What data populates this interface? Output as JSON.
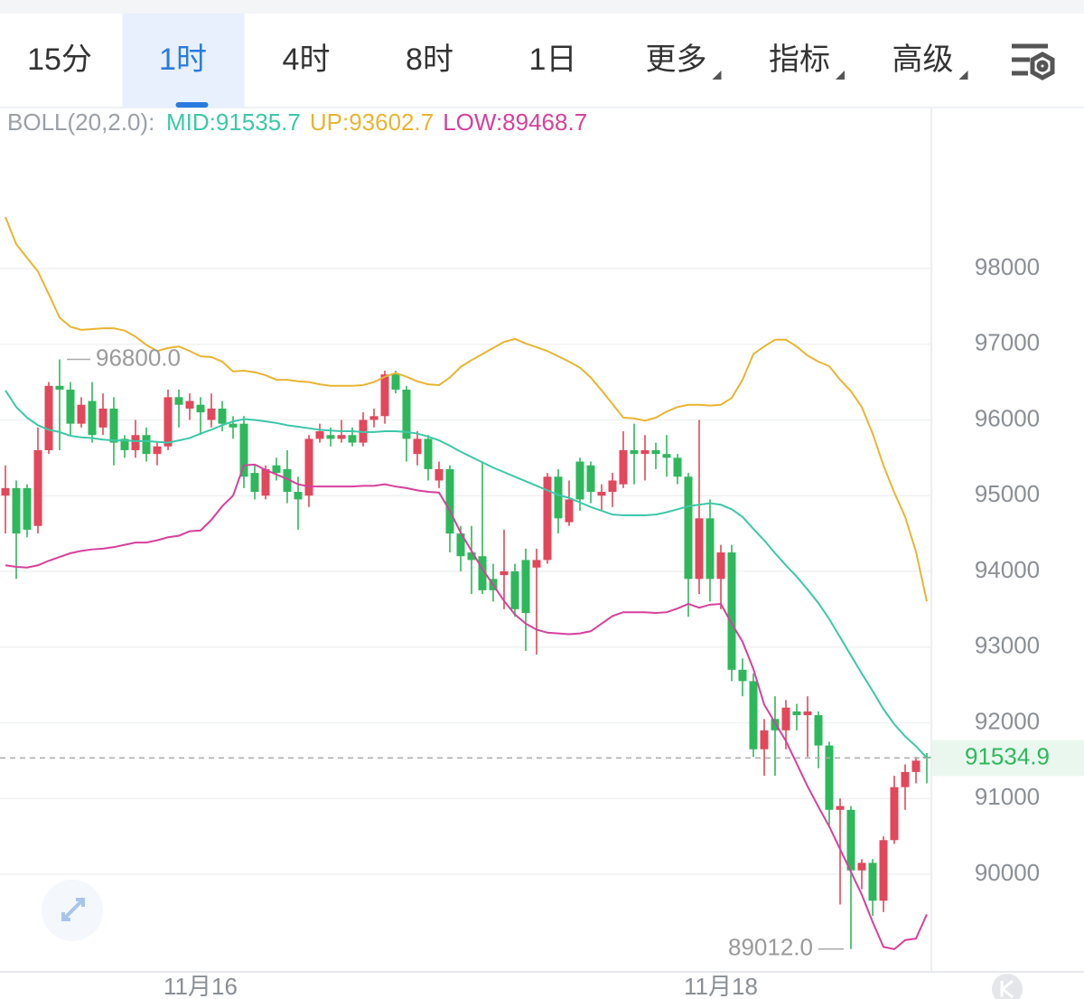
{
  "tabs": [
    {
      "label": "15分"
    },
    {
      "label": "1时",
      "active": true
    },
    {
      "label": "4时"
    },
    {
      "label": "8时"
    },
    {
      "label": "1日"
    },
    {
      "label": "更多",
      "dropdown": true
    },
    {
      "label": "指标",
      "dropdown": true
    },
    {
      "label": "高级",
      "dropdown": true
    }
  ],
  "chart_data": {
    "type": "candlestick",
    "indicator": "BOLL(20,2.0):",
    "up_color": "#e2475b",
    "down_color": "#2eb85c",
    "ylim": [
      88710,
      99755
    ],
    "yticks": [
      90000,
      91000,
      92000,
      93000,
      94000,
      95000,
      96000,
      97000,
      98000
    ],
    "grid": true,
    "categories": [
      null,
      null,
      null,
      null,
      null,
      null,
      null,
      null,
      null,
      null,
      null,
      null,
      null,
      null,
      null,
      null,
      null,
      null,
      "11月16",
      null,
      null,
      null,
      null,
      null,
      null,
      null,
      null,
      null,
      null,
      null,
      null,
      null,
      null,
      null,
      null,
      null,
      null,
      null,
      null,
      null,
      null,
      null,
      null,
      null,
      null,
      null,
      null,
      null,
      null,
      null,
      null,
      null,
      null,
      null,
      null,
      null,
      null,
      null,
      null,
      null,
      null,
      null,
      null,
      null,
      null,
      null,
      "11月18",
      null,
      null,
      null,
      null,
      null,
      null,
      null,
      null,
      null,
      null,
      null,
      null,
      null,
      null,
      null,
      null,
      null,
      null,
      null
    ],
    "candles": {
      "open": [
        95000,
        95100,
        95100,
        94600,
        95600,
        96450,
        96400,
        95950,
        96250,
        95900,
        96150,
        95750,
        95600,
        95800,
        95550,
        95650,
        96300,
        96150,
        96200,
        96000,
        96150,
        95950,
        95950,
        95300,
        95000,
        95400,
        95350,
        95050,
        95000,
        95750,
        95800,
        95750,
        95800,
        95700,
        96000,
        96050,
        96600,
        96400,
        95550,
        95750,
        95200,
        95350,
        94500,
        94250,
        94200,
        93900,
        93950,
        94000,
        94150,
        94050,
        94150,
        95250,
        94650,
        95450,
        95400,
        95000,
        95050,
        95150,
        95600,
        95550,
        95600,
        95550,
        95500,
        95250,
        93900,
        94700,
        93900,
        94250,
        92700,
        92550,
        91650,
        92050,
        91900,
        92150,
        92100,
        92100,
        91700,
        90850,
        90850,
        90050,
        90150,
        89650,
        90450,
        91150,
        91350,
        91550
      ],
      "high": [
        95400,
        95200,
        95150,
        95900,
        96500,
        96800,
        96500,
        96300,
        96500,
        96350,
        96300,
        95800,
        96000,
        95900,
        95700,
        96400,
        96400,
        96350,
        96300,
        96350,
        96250,
        96050,
        96050,
        95400,
        95400,
        95500,
        95600,
        95250,
        95800,
        95950,
        95900,
        96000,
        95900,
        96100,
        96150,
        96650,
        96650,
        96450,
        95850,
        95800,
        95450,
        95400,
        94600,
        94600,
        95450,
        94100,
        94550,
        94100,
        94300,
        94300,
        95300,
        95350,
        95200,
        95500,
        95450,
        95150,
        95300,
        95850,
        95950,
        95800,
        95700,
        95800,
        95550,
        95300,
        96000,
        94950,
        94350,
        94350,
        92850,
        92650,
        92050,
        92350,
        92300,
        92250,
        92350,
        92150,
        91750,
        91000,
        90900,
        90200,
        90200,
        90500,
        91300,
        91450,
        91550,
        91600
      ],
      "low": [
        94500,
        93900,
        94450,
        94500,
        95550,
        95600,
        95800,
        95900,
        95700,
        95800,
        95400,
        95500,
        95500,
        95450,
        95400,
        95600,
        95900,
        96000,
        95800,
        95900,
        95850,
        95750,
        95100,
        94950,
        94950,
        95200,
        94900,
        94550,
        94850,
        95700,
        95650,
        95700,
        95650,
        95650,
        95900,
        95950,
        96350,
        95450,
        95400,
        95200,
        95100,
        94250,
        94000,
        93700,
        93700,
        93600,
        93500,
        93400,
        92950,
        92900,
        94100,
        94500,
        94600,
        94800,
        94900,
        94800,
        94850,
        95100,
        95150,
        95200,
        95350,
        95250,
        95150,
        93400,
        93700,
        93600,
        93500,
        92550,
        92350,
        91550,
        91300,
        91300,
        91650,
        91900,
        91550,
        91400,
        90650,
        89600,
        89012,
        89800,
        89450,
        89500,
        90400,
        90850,
        91200,
        91200
      ],
      "close": [
        95100,
        94500,
        94550,
        95600,
        96450,
        96400,
        95950,
        96200,
        95800,
        96150,
        95700,
        95600,
        95800,
        95550,
        95650,
        96300,
        96200,
        96250,
        96100,
        96150,
        95950,
        95900,
        95250,
        95050,
        95350,
        95300,
        95050,
        94950,
        95750,
        95850,
        95750,
        95800,
        95700,
        96000,
        96050,
        96600,
        96400,
        95750,
        95750,
        95350,
        95350,
        94500,
        94200,
        94150,
        93750,
        93750,
        94000,
        93500,
        93450,
        94150,
        95250,
        94700,
        94950,
        94950,
        95050,
        95050,
        95200,
        95600,
        95550,
        95600,
        95550,
        95500,
        95250,
        93900,
        94700,
        93900,
        94250,
        92700,
        92550,
        91650,
        91900,
        91900,
        92200,
        92100,
        92150,
        91700,
        90850,
        90900,
        90050,
        90150,
        89650,
        90450,
        91150,
        91350,
        91500,
        91534.9
      ]
    },
    "series": [
      {
        "name": "MID",
        "legend": "MID:91535.7",
        "color": "#3cc8a8",
        "values": [
          96390,
          96170,
          96030,
          95930,
          95870,
          95840,
          95790,
          95770,
          95760,
          95740,
          95730,
          95730,
          95720,
          95720,
          95710,
          95700,
          95730,
          95760,
          95820,
          95870,
          95930,
          95980,
          96010,
          96000,
          95980,
          95960,
          95930,
          95910,
          95890,
          95870,
          95860,
          95850,
          95850,
          95840,
          95840,
          95850,
          95850,
          95840,
          95820,
          95780,
          95730,
          95660,
          95580,
          95510,
          95440,
          95370,
          95310,
          95250,
          95190,
          95130,
          95070,
          95010,
          94970,
          94910,
          94850,
          94800,
          94750,
          94740,
          94740,
          94740,
          94750,
          94780,
          94820,
          94860,
          94880,
          94900,
          94880,
          94820,
          94720,
          94560,
          94410,
          94240,
          94080,
          93930,
          93760,
          93580,
          93370,
          93130,
          92890,
          92650,
          92420,
          92180,
          91980,
          91820,
          91690,
          91535.7
        ]
      },
      {
        "name": "UP",
        "legend": "UP:93602.7",
        "color": "#e8b530",
        "values": [
          98680,
          98320,
          98140,
          97960,
          97660,
          97350,
          97230,
          97190,
          97200,
          97210,
          97210,
          97180,
          97100,
          96990,
          96910,
          96950,
          96970,
          96910,
          96840,
          96830,
          96770,
          96640,
          96650,
          96630,
          96590,
          96530,
          96530,
          96510,
          96500,
          96470,
          96450,
          96450,
          96450,
          96460,
          96500,
          96570,
          96620,
          96570,
          96510,
          96470,
          96460,
          96560,
          96700,
          96790,
          96870,
          96950,
          97030,
          97070,
          97010,
          96960,
          96910,
          96840,
          96770,
          96690,
          96560,
          96390,
          96210,
          96030,
          96020,
          95990,
          96030,
          96110,
          96170,
          96200,
          96200,
          96190,
          96200,
          96290,
          96530,
          96870,
          96970,
          97060,
          97060,
          96970,
          96850,
          96770,
          96710,
          96530,
          96380,
          96170,
          95820,
          95400,
          95040,
          94720,
          94260,
          93602.7
        ]
      },
      {
        "name": "LOW",
        "legend": "LOW:89468.7",
        "color": "#d6409c",
        "values": [
          94080,
          94060,
          94050,
          94080,
          94140,
          94190,
          94240,
          94270,
          94290,
          94300,
          94320,
          94350,
          94380,
          94380,
          94410,
          94450,
          94470,
          94530,
          94540,
          94680,
          94860,
          95000,
          95400,
          95410,
          95340,
          95280,
          95220,
          95150,
          95120,
          95120,
          95120,
          95120,
          95120,
          95130,
          95130,
          95150,
          95120,
          95100,
          95070,
          95050,
          95040,
          94800,
          94510,
          94270,
          94030,
          93820,
          93610,
          93430,
          93310,
          93230,
          93190,
          93180,
          93170,
          93180,
          93210,
          93310,
          93410,
          93460,
          93460,
          93460,
          93450,
          93460,
          93510,
          93570,
          93520,
          93560,
          93570,
          93310,
          93070,
          92710,
          92240,
          92000,
          91760,
          91460,
          91160,
          90890,
          90630,
          90330,
          90030,
          89730,
          89370,
          89040,
          89010,
          89130,
          89150,
          89468.7
        ]
      }
    ],
    "high_marker": {
      "value": 96800,
      "label": "96800.0"
    },
    "low_marker": {
      "value": 89012,
      "label": "89012.0"
    },
    "last_price": 91534.9
  }
}
